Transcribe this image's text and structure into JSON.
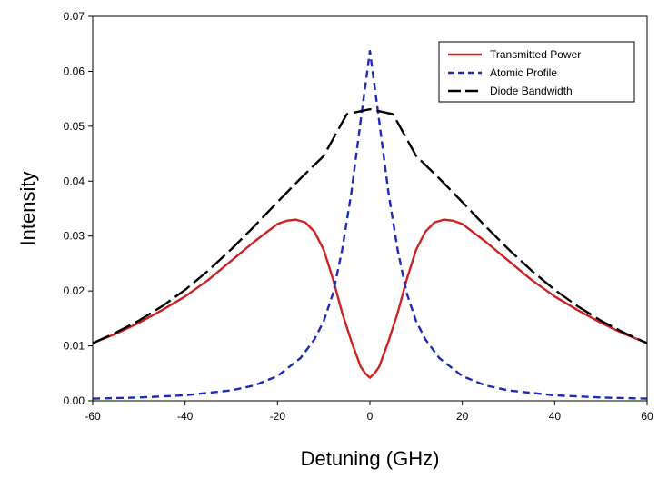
{
  "chart_data": {
    "type": "line",
    "title": "",
    "xlabel": "Detuning (GHz)",
    "ylabel": "Intensity",
    "xlim": [
      -60,
      60
    ],
    "ylim": [
      0.0,
      0.07
    ],
    "xticks": [
      -60,
      -40,
      -20,
      0,
      20,
      40,
      60
    ],
    "xtick_labels": [
      "-60",
      "-40",
      "-20",
      "0",
      "20",
      "40",
      "60"
    ],
    "yticks": [
      0.0,
      0.01,
      0.02,
      0.03,
      0.04,
      0.05,
      0.06,
      0.07
    ],
    "ytick_labels": [
      "0.00",
      "0.01",
      "0.02",
      "0.03",
      "0.04",
      "0.05",
      "0.06",
      "0.07"
    ],
    "grid": false,
    "legend_position": "top-right",
    "series": [
      {
        "name": "Transmitted Power",
        "color": "#cc2222",
        "dash": "solid",
        "x": [
          -60,
          -55,
          -50,
          -45,
          -40,
          -35,
          -30,
          -25,
          -20,
          -18,
          -16,
          -14,
          -12,
          -10,
          -8,
          -6,
          -4,
          -2,
          -1,
          0,
          1,
          2,
          4,
          6,
          8,
          10,
          12,
          14,
          16,
          18,
          20,
          25,
          30,
          35,
          40,
          45,
          50,
          55,
          60
        ],
        "y": [
          0.0105,
          0.0122,
          0.0142,
          0.0165,
          0.019,
          0.022,
          0.0255,
          0.029,
          0.0322,
          0.0328,
          0.033,
          0.0325,
          0.0308,
          0.0275,
          0.0222,
          0.016,
          0.0108,
          0.0062,
          0.005,
          0.0042,
          0.005,
          0.0062,
          0.0108,
          0.016,
          0.0222,
          0.0275,
          0.0308,
          0.0325,
          0.033,
          0.0328,
          0.0322,
          0.029,
          0.0255,
          0.022,
          0.019,
          0.0165,
          0.0142,
          0.0122,
          0.0105
        ]
      },
      {
        "name": "Atomic Profile",
        "color": "#1a2db5",
        "dash": "dashed",
        "x": [
          -60,
          -50,
          -40,
          -30,
          -25,
          -20,
          -15,
          -12,
          -10,
          -8,
          -6,
          -4,
          -2,
          0,
          2,
          4,
          6,
          8,
          10,
          12,
          15,
          20,
          25,
          30,
          40,
          50,
          60
        ],
        "y": [
          0.0004,
          0.0006,
          0.001,
          0.0019,
          0.0028,
          0.0045,
          0.0078,
          0.0112,
          0.0145,
          0.0195,
          0.0275,
          0.038,
          0.051,
          0.0637,
          0.051,
          0.038,
          0.0275,
          0.0195,
          0.0145,
          0.0112,
          0.0078,
          0.0045,
          0.0028,
          0.0019,
          0.001,
          0.0006,
          0.0004
        ]
      },
      {
        "name": "Diode Bandwidth",
        "color": "#000000",
        "dash": "longdash",
        "x": [
          -60,
          -55,
          -50,
          -45,
          -40,
          -35,
          -30,
          -25,
          -20,
          -15,
          -10,
          -5,
          0,
          5,
          10,
          15,
          20,
          25,
          30,
          35,
          40,
          45,
          50,
          55,
          60
        ],
        "y": [
          0.0105,
          0.0124,
          0.0146,
          0.0172,
          0.0202,
          0.0237,
          0.0276,
          0.0318,
          0.0362,
          0.0405,
          0.0446,
          0.0522,
          0.0531,
          0.0522,
          0.0446,
          0.0405,
          0.0362,
          0.0318,
          0.0276,
          0.0237,
          0.0202,
          0.0172,
          0.0146,
          0.0124,
          0.0105
        ]
      }
    ]
  }
}
